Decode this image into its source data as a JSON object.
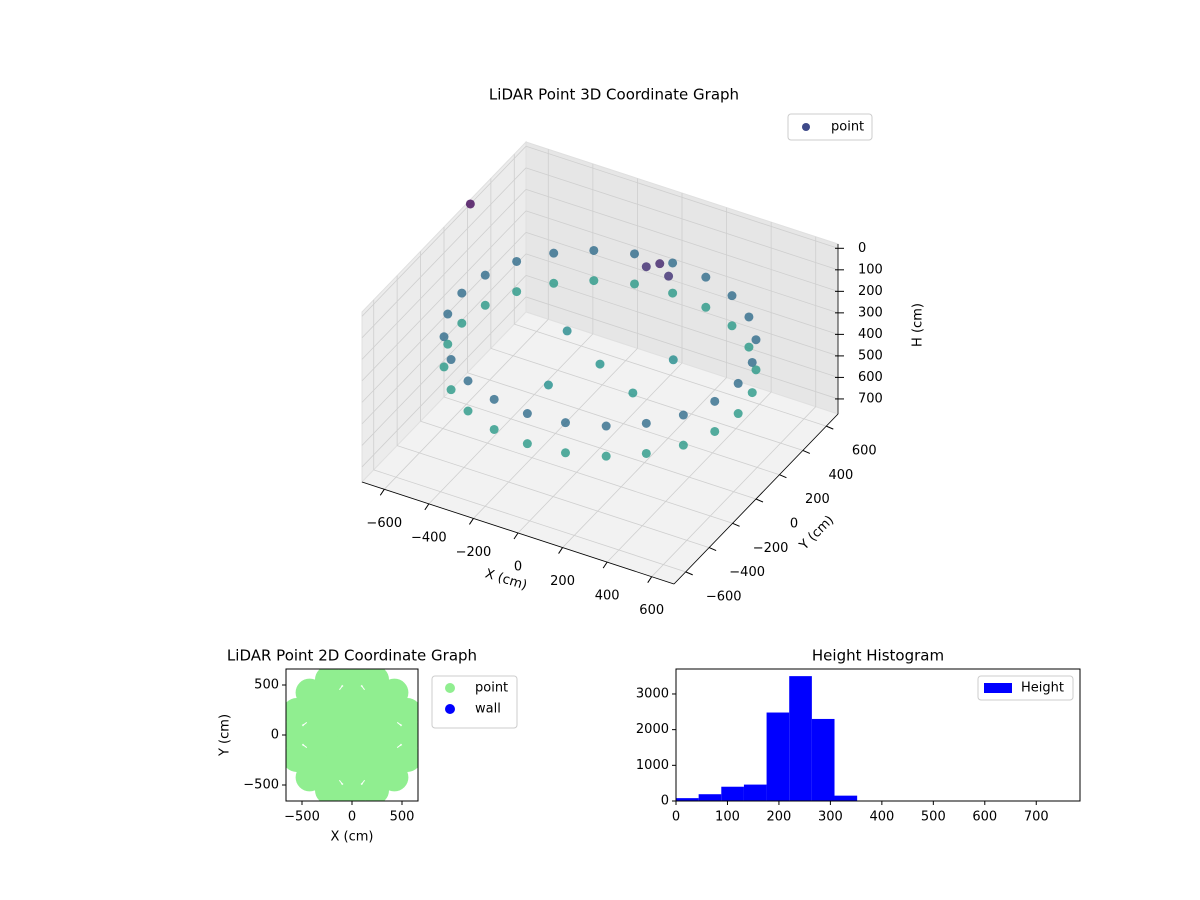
{
  "chart_data": [
    {
      "type": "scatter3d",
      "title": "LiDAR Point 3D Coordinate Graph",
      "xlabel": "X (cm)",
      "ylabel": "Y (cm)",
      "zlabel": "H (cm)",
      "colormap": "viridis",
      "zinvert": true,
      "legend": "upper right",
      "xlim": [
        -700,
        700
      ],
      "ylim": [
        -700,
        700
      ],
      "zlim": [
        -20,
        770
      ],
      "xticks": [
        {
          "value": -600,
          "label": "−600"
        },
        {
          "value": -400,
          "label": "−400"
        },
        {
          "value": -200,
          "label": "−200"
        },
        0,
        200,
        400,
        600
      ],
      "yticks": [
        {
          "value": -600,
          "label": "−600"
        },
        {
          "value": -400,
          "label": "−400"
        },
        {
          "value": -200,
          "label": "−200"
        },
        0,
        200,
        400,
        600
      ],
      "zticks": [
        0,
        100,
        200,
        300,
        400,
        500,
        600,
        700
      ],
      "series": [
        {
          "name": "point",
          "color": "#3e4a89",
          "x": [
            620,
            599,
            537,
            438,
            310,
            160,
            0,
            -160,
            -310,
            -438,
            -537,
            -599,
            -620,
            -599,
            -537,
            -438,
            -310,
            -160,
            0,
            160,
            310,
            438,
            537,
            599,
            620,
            599,
            537,
            438,
            310,
            160,
            0,
            -160,
            -310,
            -438,
            -537,
            -599,
            -620,
            -599,
            -537,
            -438,
            -310,
            -160,
            0,
            160,
            310,
            438,
            537,
            599,
            50,
            100,
            150,
            0,
            -200,
            200,
            -100,
            250,
            -700
          ],
          "y": [
            0,
            160,
            310,
            438,
            537,
            599,
            620,
            599,
            537,
            438,
            310,
            160,
            0,
            -160,
            -310,
            -438,
            -537,
            -599,
            -620,
            -599,
            -537,
            -438,
            -310,
            -160,
            0,
            160,
            310,
            438,
            537,
            599,
            620,
            599,
            537,
            438,
            310,
            160,
            0,
            -160,
            -310,
            -438,
            -537,
            -599,
            -620,
            -599,
            -537,
            -438,
            -310,
            -160,
            300,
            320,
            300,
            0,
            100,
            -100,
            -250,
            150,
            225
          ],
          "h": [
            260,
            260,
            260,
            260,
            260,
            260,
            260,
            260,
            260,
            260,
            260,
            260,
            260,
            260,
            260,
            260,
            260,
            260,
            260,
            260,
            260,
            260,
            260,
            260,
            400,
            400,
            400,
            400,
            400,
            400,
            400,
            400,
            400,
            400,
            400,
            400,
            400,
            400,
            400,
            400,
            400,
            400,
            400,
            400,
            400,
            400,
            400,
            400,
            80,
            60,
            90,
            380,
            350,
            390,
            370,
            360,
            0
          ]
        }
      ]
    },
    {
      "type": "scatter",
      "title": "LiDAR Point 2D Coordinate Graph",
      "xlabel": "X (cm)",
      "ylabel": "Y (cm)",
      "legend": "outside right",
      "xlim": [
        -660,
        660
      ],
      "ylim": [
        -660,
        660
      ],
      "xticks": [
        {
          "value": -500,
          "label": "−500"
        },
        0,
        500
      ],
      "yticks": [
        {
          "value": -500,
          "label": "−500"
        },
        0,
        500
      ],
      "series": [
        {
          "name": "point",
          "color": "#90ee90",
          "x": [
            600,
            554,
            424,
            230,
            0,
            -230,
            -424,
            -554,
            -600,
            -554,
            -424,
            -230,
            0,
            230,
            424,
            554,
            380,
            329,
            190,
            0,
            -190,
            -329,
            -380,
            -329,
            -190,
            0,
            190,
            329,
            160,
            80,
            -80,
            -160,
            -80,
            80,
            0
          ],
          "y": [
            0,
            230,
            424,
            554,
            600,
            554,
            424,
            230,
            0,
            -230,
            -424,
            -554,
            -600,
            -554,
            -424,
            -230,
            0,
            190,
            329,
            380,
            329,
            190,
            0,
            -190,
            -329,
            -380,
            -329,
            -190,
            0,
            139,
            139,
            0,
            -139,
            -139,
            0
          ]
        },
        {
          "name": "wall",
          "color": "#0000ff",
          "x": [],
          "y": []
        }
      ]
    },
    {
      "type": "histogram",
      "title": "Height Histogram",
      "legend": "upper right",
      "xlim": [
        0,
        785
      ],
      "ylim": [
        0,
        3700
      ],
      "xticks": [
        0,
        100,
        200,
        300,
        400,
        500,
        600,
        700
      ],
      "yticks": [
        0,
        1000,
        2000,
        3000
      ],
      "bins": [
        0,
        44,
        88,
        132,
        176,
        220,
        264,
        308,
        352,
        396,
        440,
        484,
        528,
        572,
        616,
        660,
        704,
        748
      ],
      "series": [
        {
          "name": "Height",
          "color": "#0000ff",
          "values": [
            80,
            190,
            400,
            460,
            2480,
            3500,
            2300,
            150,
            0,
            0,
            0,
            0,
            0,
            0,
            0,
            0,
            0
          ]
        }
      ]
    }
  ]
}
